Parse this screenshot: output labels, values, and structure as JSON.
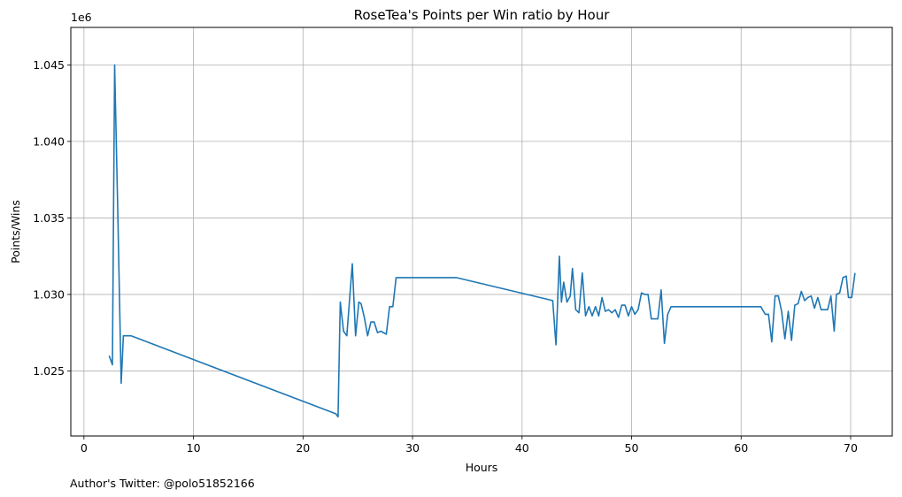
{
  "chart_data": {
    "type": "line",
    "title": "RoseTea's Points per Win ratio by Hour",
    "xlabel": "Hours",
    "ylabel": "Points/Wins",
    "offset_label": "1e6",
    "xlim": [
      -1.2,
      73.8
    ],
    "ylim": [
      1.02075,
      1.04745
    ],
    "x_ticks": [
      0,
      10,
      20,
      30,
      40,
      50,
      60,
      70
    ],
    "y_ticks": [
      1.025,
      1.03,
      1.035,
      1.04,
      1.045
    ],
    "x_tick_labels": [
      "0",
      "10",
      "20",
      "30",
      "40",
      "50",
      "60",
      "70"
    ],
    "y_tick_labels": [
      "1.025",
      "1.030",
      "1.035",
      "1.040",
      "1.045"
    ],
    "grid": true,
    "line_color": "#1f77b4",
    "series": [
      {
        "x": [
          2.3,
          2.6,
          2.8,
          3.1,
          3.4,
          3.6,
          4.3,
          23.0,
          23.2,
          23.4,
          23.7,
          24.0,
          24.5,
          24.8,
          25.1,
          25.3,
          25.6,
          25.9,
          26.2,
          26.5,
          26.8,
          27.1,
          27.6,
          27.9,
          28.2,
          28.5,
          28.8,
          34.0,
          42.8,
          43.1,
          43.4,
          43.6,
          43.8,
          44.1,
          44.4,
          44.6,
          44.9,
          45.2,
          45.5,
          45.8,
          46.1,
          46.4,
          46.7,
          47.0,
          47.3,
          47.6,
          47.9,
          48.2,
          48.5,
          48.8,
          49.1,
          49.4,
          49.7,
          50.0,
          50.3,
          50.6,
          50.9,
          51.2,
          51.5,
          51.8,
          52.1,
          52.4,
          52.7,
          53.0,
          53.3,
          53.6,
          53.9,
          54.3,
          61.8,
          62.2,
          62.5,
          62.8,
          63.1,
          63.4,
          63.7,
          64.0,
          64.3,
          64.6,
          64.9,
          65.2,
          65.5,
          65.8,
          66.1,
          66.4,
          66.7,
          67.0,
          67.3,
          67.6,
          67.9,
          68.2,
          68.5,
          68.7,
          69.0,
          69.3,
          69.6,
          69.8,
          70.1,
          70.4
        ],
        "y": [
          1.026,
          1.0254,
          1.045,
          1.035,
          1.0242,
          1.0273,
          1.0273,
          1.0222,
          1.022,
          1.0295,
          1.0276,
          1.0273,
          1.032,
          1.0273,
          1.0295,
          1.0294,
          1.0285,
          1.0273,
          1.0282,
          1.0282,
          1.0275,
          1.0276,
          1.0274,
          1.0292,
          1.0292,
          1.0311,
          1.0311,
          1.0311,
          1.0296,
          1.0267,
          1.0325,
          1.0295,
          1.0308,
          1.0295,
          1.0299,
          1.0317,
          1.029,
          1.0288,
          1.0314,
          1.0286,
          1.0292,
          1.0286,
          1.0292,
          1.0286,
          1.0298,
          1.0289,
          1.029,
          1.0288,
          1.029,
          1.0285,
          1.0293,
          1.0293,
          1.0286,
          1.0292,
          1.0287,
          1.029,
          1.0301,
          1.03,
          1.03,
          1.0284,
          1.0284,
          1.0284,
          1.0303,
          1.0268,
          1.0287,
          1.0292,
          1.0292,
          1.0292,
          1.0292,
          1.0287,
          1.0287,
          1.0269,
          1.0299,
          1.0299,
          1.0289,
          1.0271,
          1.0289,
          1.027,
          1.0293,
          1.0294,
          1.0302,
          1.0296,
          1.0298,
          1.0299,
          1.0291,
          1.0298,
          1.029,
          1.029,
          1.029,
          1.0299,
          1.0276,
          1.03,
          1.0301,
          1.0311,
          1.0312,
          1.0298,
          1.0298,
          1.0314
        ]
      }
    ]
  },
  "footer": {
    "author": "Author's Twitter: @polo51852166"
  }
}
